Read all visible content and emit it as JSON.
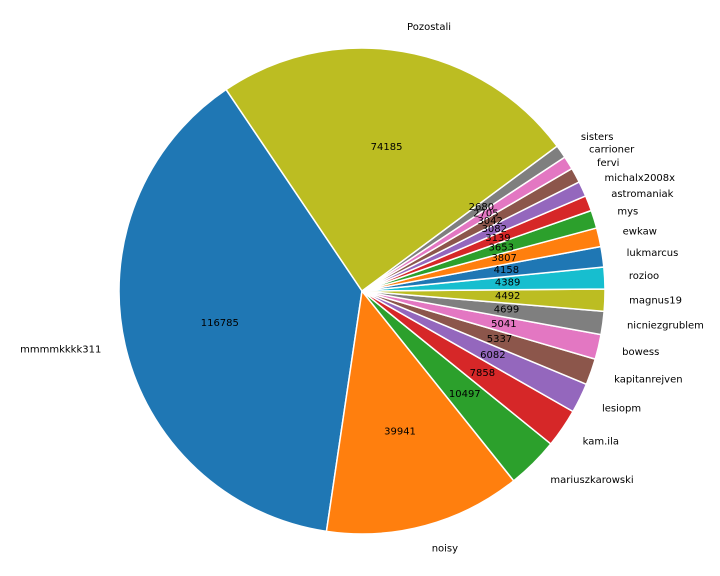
{
  "chart_data": {
    "type": "pie",
    "title": "",
    "start_angle_deg": 124,
    "direction": "counterclockwise",
    "wedge_edge_color": "#ffffff",
    "slices": [
      {
        "label": "mmmmkkkk311",
        "value": 116785,
        "color": "#1f77b4"
      },
      {
        "label": "noisy",
        "value": 39941,
        "color": "#ff7f0e"
      },
      {
        "label": "mariuszkarowski",
        "value": 10497,
        "color": "#2ca02c"
      },
      {
        "label": "kam.ila",
        "value": 7858,
        "color": "#d62728"
      },
      {
        "label": "lesiopm",
        "value": 6082,
        "color": "#9467bd"
      },
      {
        "label": "kapitanrejven",
        "value": 5337,
        "color": "#8c564b"
      },
      {
        "label": "bowess",
        "value": 5041,
        "color": "#e377c2"
      },
      {
        "label": "nicniezgrublem",
        "value": 4699,
        "color": "#7f7f7f"
      },
      {
        "label": "magnus19",
        "value": 4492,
        "color": "#bcbd22"
      },
      {
        "label": "rozioo",
        "value": 4389,
        "color": "#17becf"
      },
      {
        "label": "lukmarcus",
        "value": 4158,
        "color": "#1f77b4"
      },
      {
        "label": "ewkaw",
        "value": 3807,
        "color": "#ff7f0e"
      },
      {
        "label": "mys",
        "value": 3653,
        "color": "#2ca02c"
      },
      {
        "label": "astromaniak",
        "value": 3139,
        "color": "#d62728"
      },
      {
        "label": "michalx2008x",
        "value": 3082,
        "color": "#9467bd"
      },
      {
        "label": "fervi",
        "value": 3042,
        "color": "#8c564b"
      },
      {
        "label": "carrioner",
        "value": 2705,
        "color": "#e377c2"
      },
      {
        "label": "sisters",
        "value": 2680,
        "color": "#7f7f7f"
      },
      {
        "label": "Pozostali",
        "value": 74185,
        "color": "#bcbd22"
      }
    ]
  }
}
